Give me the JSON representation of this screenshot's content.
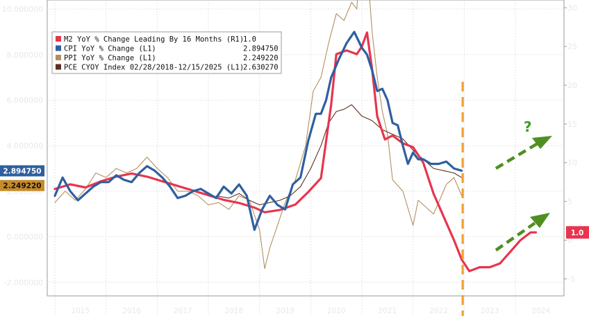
{
  "chart_data": {
    "type": "line",
    "title": "",
    "xlabel": "",
    "ylabel": "",
    "x_ticks": [
      "2015",
      "2016",
      "2017",
      "2018",
      "2019",
      "2020",
      "2021",
      "2022",
      "2023",
      "2024"
    ],
    "xlim": [
      2014.85,
      2024.95
    ],
    "ylim_left": [
      -2.6,
      10.4
    ],
    "ylim_right": [
      -7.2,
      31
    ],
    "left_ticks": [
      "10.000000",
      "8.000000",
      "6.000000",
      "4.000000",
      "2.000000",
      "0.000000",
      "-2.000000"
    ],
    "left_tick_values": [
      10,
      8,
      6,
      4,
      2,
      0,
      -2
    ],
    "right_ticks": [
      "30",
      "25",
      "20",
      "15",
      "10",
      "5",
      "0",
      "-5"
    ],
    "right_tick_values": [
      30,
      25,
      20,
      15,
      10,
      5,
      0,
      -5
    ],
    "grid": true,
    "legend_position": "top-left",
    "legend": [
      {
        "label": "M2 YoY % Change Leading By 16 Months (R1)",
        "value": "1.0",
        "color": "#e8344e"
      },
      {
        "label": "CPI YoY % Change (L1)",
        "value": "2.894750",
        "color": "#2e5fa0"
      },
      {
        "label": "PPI YoY % Change (L1)",
        "value": "2.249220",
        "color": "#b09060"
      },
      {
        "label": "PCE CYOY Index 02/28/2018-12/15/2025 (L1)",
        "value": "2.630270",
        "color": "#5a3020"
      }
    ],
    "series": [
      {
        "name": "M2 YoY % Change Leading By 16 Months (R1)",
        "axis": "right",
        "color": "#e8344e",
        "x": [
          2015.0,
          2015.3,
          2015.6,
          2015.9,
          2016.2,
          2016.5,
          2016.8,
          2017.1,
          2017.4,
          2017.7,
          2018.0,
          2018.3,
          2018.6,
          2018.9,
          2019.1,
          2019.4,
          2019.7,
          2019.95,
          2020.2,
          2020.4,
          2020.5,
          2020.7,
          2020.9,
          2021.0,
          2021.1,
          2021.2,
          2021.3,
          2021.45,
          2021.6,
          2021.8,
          2022.0,
          2022.2,
          2022.4,
          2022.6,
          2022.8,
          2022.95,
          2023.1,
          2023.3,
          2023.5,
          2023.7,
          2023.9,
          2024.1,
          2024.3,
          2024.4
        ],
        "y": [
          6.6,
          7.2,
          6.8,
          7.6,
          8.2,
          8.6,
          8.2,
          7.6,
          7.0,
          6.4,
          5.8,
          5.2,
          4.8,
          4.2,
          3.6,
          3.9,
          4.6,
          6.2,
          8.0,
          17.5,
          24.0,
          24.5,
          24.0,
          25.0,
          26.8,
          22.0,
          16.0,
          13.0,
          13.5,
          12.5,
          12.0,
          10.0,
          6.0,
          3.0,
          0.0,
          -2.5,
          -4.0,
          -3.5,
          -3.5,
          -3.0,
          -1.5,
          0.0,
          1.0,
          1.0
        ]
      },
      {
        "name": "CPI YoY % Change (L1)",
        "axis": "left",
        "color": "#2e5fa0",
        "x": [
          2015.0,
          2015.15,
          2015.3,
          2015.45,
          2015.6,
          2015.75,
          2015.9,
          2016.05,
          2016.2,
          2016.35,
          2016.5,
          2016.65,
          2016.8,
          2016.95,
          2017.1,
          2017.25,
          2017.4,
          2017.55,
          2017.7,
          2017.85,
          2018.0,
          2018.15,
          2018.3,
          2018.45,
          2018.6,
          2018.75,
          2018.9,
          2019.05,
          2019.2,
          2019.35,
          2019.5,
          2019.65,
          2019.8,
          2019.95,
          2020.1,
          2020.2,
          2020.3,
          2020.4,
          2020.55,
          2020.7,
          2020.85,
          2021.0,
          2021.1,
          2021.2,
          2021.3,
          2021.4,
          2021.5,
          2021.6,
          2021.7,
          2021.8,
          2021.9,
          2022.0,
          2022.1,
          2022.2,
          2022.35,
          2022.5,
          2022.65,
          2022.8,
          2022.95
        ],
        "y": [
          1.8,
          2.6,
          2.0,
          1.6,
          1.9,
          2.2,
          2.4,
          2.4,
          2.7,
          2.5,
          2.4,
          2.8,
          3.1,
          2.9,
          2.6,
          2.2,
          1.7,
          1.8,
          2.0,
          2.1,
          1.9,
          1.7,
          2.2,
          1.9,
          2.3,
          1.8,
          0.3,
          1.2,
          1.8,
          1.4,
          1.2,
          2.3,
          2.6,
          4.2,
          5.4,
          5.4,
          6.0,
          7.0,
          7.8,
          8.5,
          9.0,
          8.3,
          8.0,
          7.3,
          6.4,
          6.5,
          6.0,
          5.0,
          4.9,
          4.0,
          3.2,
          3.7,
          3.4,
          3.4,
          3.2,
          3.2,
          3.3,
          3.0,
          2.9
        ]
      },
      {
        "name": "PPI YoY % Change (L1)",
        "axis": "left",
        "color": "#b09060",
        "x": [
          2015.0,
          2015.2,
          2015.4,
          2015.6,
          2015.8,
          2016.0,
          2016.2,
          2016.4,
          2016.6,
          2016.8,
          2017.0,
          2017.2,
          2017.4,
          2017.6,
          2017.8,
          2018.0,
          2018.2,
          2018.4,
          2018.6,
          2018.8,
          2019.0,
          2019.1,
          2019.2,
          2019.35,
          2019.5,
          2019.7,
          2019.9,
          2020.05,
          2020.2,
          2020.35,
          2020.5,
          2020.65,
          2020.8,
          2020.9,
          2021.0,
          2021.1,
          2021.2,
          2021.3,
          2021.4,
          2021.5,
          2021.6,
          2021.8,
          2022.0,
          2022.1,
          2022.25,
          2022.4,
          2022.5,
          2022.65,
          2022.8,
          2022.95
        ],
        "y": [
          1.5,
          2.0,
          1.6,
          2.1,
          2.8,
          2.6,
          3.0,
          2.8,
          3.0,
          3.5,
          3.0,
          2.6,
          2.0,
          2.0,
          1.8,
          1.4,
          1.5,
          1.2,
          1.8,
          1.6,
          0.3,
          -1.4,
          -0.5,
          0.5,
          1.5,
          2.5,
          4.0,
          6.4,
          7.0,
          8.5,
          9.8,
          9.5,
          10.3,
          10.0,
          13.0,
          12.0,
          9.0,
          7.0,
          5.5,
          4.5,
          2.5,
          2.0,
          0.5,
          1.6,
          1.3,
          1.0,
          1.5,
          2.3,
          2.6,
          1.8
        ]
      },
      {
        "name": "PCE CYOY Index 02/28/2018-12/15/2025 (L1)",
        "axis": "left",
        "color": "#5a3020",
        "x": [
          2018.15,
          2018.4,
          2018.6,
          2018.8,
          2019.0,
          2019.2,
          2019.4,
          2019.6,
          2019.8,
          2020.0,
          2020.2,
          2020.35,
          2020.5,
          2020.65,
          2020.8,
          2021.0,
          2021.2,
          2021.4,
          2021.6,
          2021.8,
          2022.0,
          2022.2,
          2022.4,
          2022.6,
          2022.8,
          2022.95
        ],
        "y": [
          1.8,
          1.7,
          1.9,
          1.6,
          1.4,
          1.5,
          1.6,
          1.8,
          2.2,
          3.0,
          4.0,
          5.0,
          5.5,
          5.6,
          5.8,
          5.3,
          5.1,
          4.7,
          4.5,
          4.3,
          3.8,
          3.4,
          3.0,
          2.9,
          2.8,
          2.6
        ]
      }
    ],
    "axis_tags": {
      "left": [
        {
          "text": "2.894750",
          "value": 2.89475,
          "bg": "#2e5fa0",
          "fg": "#ffffff"
        },
        {
          "text": "2.249220",
          "value": 2.24922,
          "bg": "#c68b2a",
          "fg": "#111111"
        }
      ],
      "right": [
        {
          "text": "1.0",
          "value": 1.0,
          "bg": "#e8344e",
          "fg": "#ffffff"
        }
      ]
    },
    "annotations": {
      "vline_x": 2022.97,
      "question_mark": "?",
      "arrow_color": "#4f8f22",
      "vline_color": "#f0a030"
    }
  }
}
